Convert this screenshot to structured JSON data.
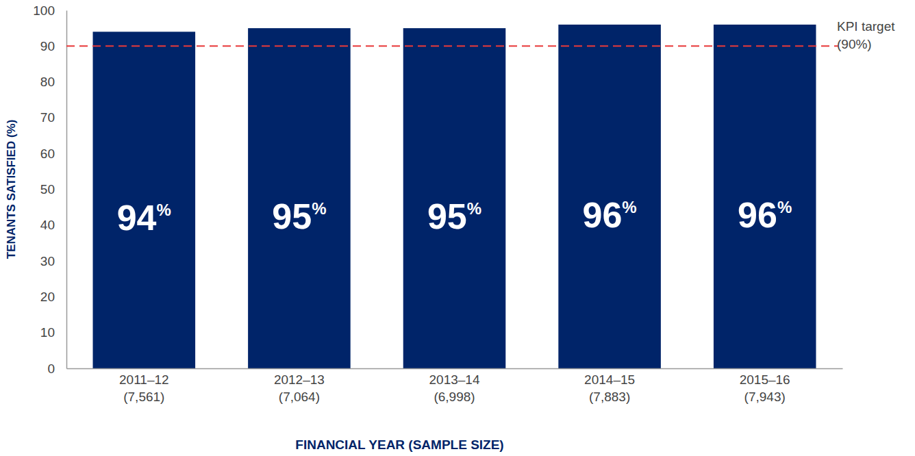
{
  "chart_data": {
    "type": "bar",
    "categories": [
      "2011–12\n(7,561)",
      "2012–13\n(7,064)",
      "2013–14\n(6,998)",
      "2014–15\n(7,883)",
      "2015–16\n(7,943)"
    ],
    "values": [
      94,
      95,
      95,
      96,
      96
    ],
    "value_labels": [
      "94%",
      "95%",
      "95%",
      "96%",
      "96%"
    ],
    "data_labels": true,
    "color": "#002469",
    "x_label": "FINANCIAL YEAR (SAMPLE SIZE)",
    "y_label": "TENANTS SATISFIED (%)",
    "ylim": [
      0,
      100
    ],
    "yticks": [
      0,
      10,
      20,
      30,
      40,
      50,
      60,
      70,
      80,
      90,
      100
    ],
    "grid": false,
    "annotations": [
      {
        "text": "KPI target\n(90%)",
        "y": 90,
        "color": "#e8393a",
        "line_style": "dashed"
      }
    ]
  }
}
